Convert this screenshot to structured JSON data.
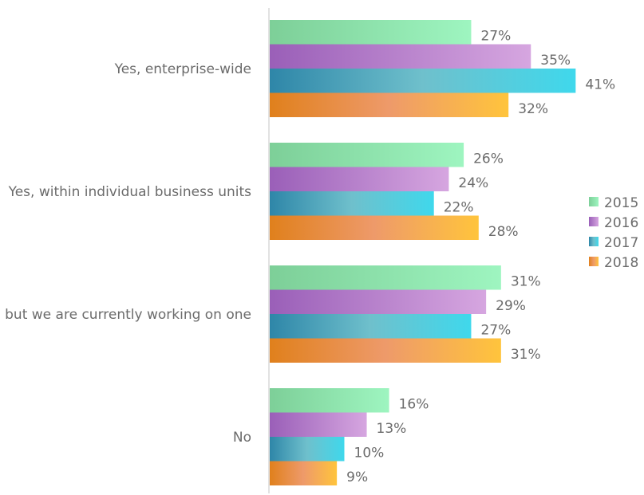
{
  "chart_data": {
    "type": "bar",
    "orientation": "horizontal",
    "categories": [
      "Yes, enterprise-wide",
      "Yes, within individual business units",
      "No, but we are currently working on one",
      "No"
    ],
    "series": [
      {
        "name": "2015",
        "values": [
          27,
          26,
          31,
          16
        ],
        "labels": [
          "27%",
          "26%",
          "31%",
          "16%"
        ],
        "color": "#8ed9a8"
      },
      {
        "name": "2016",
        "values": [
          35,
          24,
          29,
          13
        ],
        "labels": [
          "35%",
          "24%",
          "29%",
          "13%"
        ],
        "color": "#b57fcc"
      },
      {
        "name": "2017",
        "values": [
          41,
          22,
          27,
          10
        ],
        "labels": [
          "41%",
          "22%",
          "27%",
          "10%"
        ],
        "color": "#3fb9d0"
      },
      {
        "name": "2018",
        "values": [
          32,
          28,
          31,
          9
        ],
        "labels": [
          "32%",
          "28%",
          "31%",
          "9%"
        ],
        "color": "#f0a030"
      }
    ],
    "xlim": [
      0,
      45
    ],
    "grid": false,
    "legend_position": "right"
  }
}
